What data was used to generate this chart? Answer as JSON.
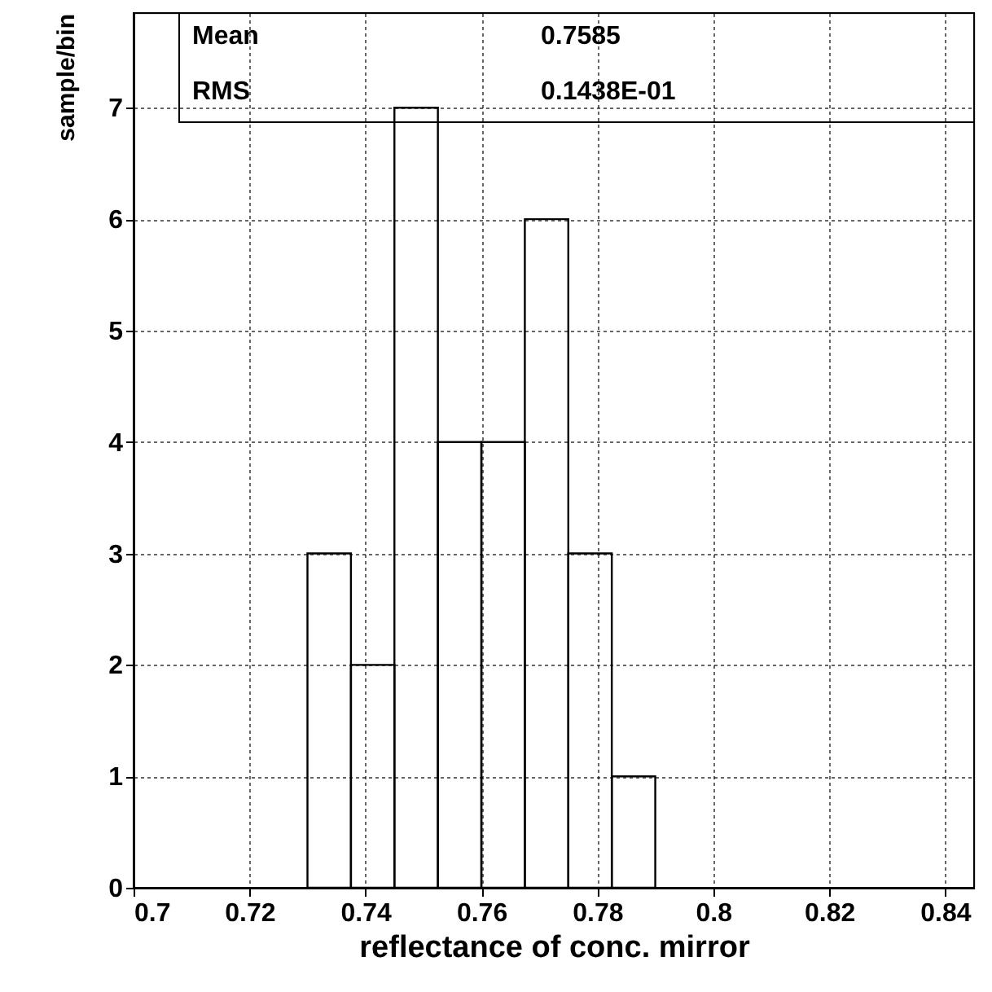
{
  "chart_data": {
    "type": "histogram",
    "xlabel": "reflectance of conc. mirror",
    "ylabel": "sample/bin",
    "bins": [
      0.73,
      0.7375,
      0.745,
      0.7525,
      0.76,
      0.7675,
      0.775,
      0.7825,
      0.79
    ],
    "values": [
      3,
      2,
      7,
      4,
      4,
      6,
      3,
      1
    ],
    "color": "#000000",
    "xlim": [
      0.7,
      0.845
    ],
    "xticks": [
      0.7,
      0.72,
      0.74,
      0.76,
      0.78,
      0.8,
      0.82,
      0.84
    ],
    "ylim": [
      0,
      7.85
    ],
    "yticks": [
      0,
      1,
      2,
      3,
      4,
      5,
      6,
      7
    ],
    "grid": true,
    "annotations": [
      "Mean 0.7585",
      "RMS 0.1438E-01"
    ]
  }
}
